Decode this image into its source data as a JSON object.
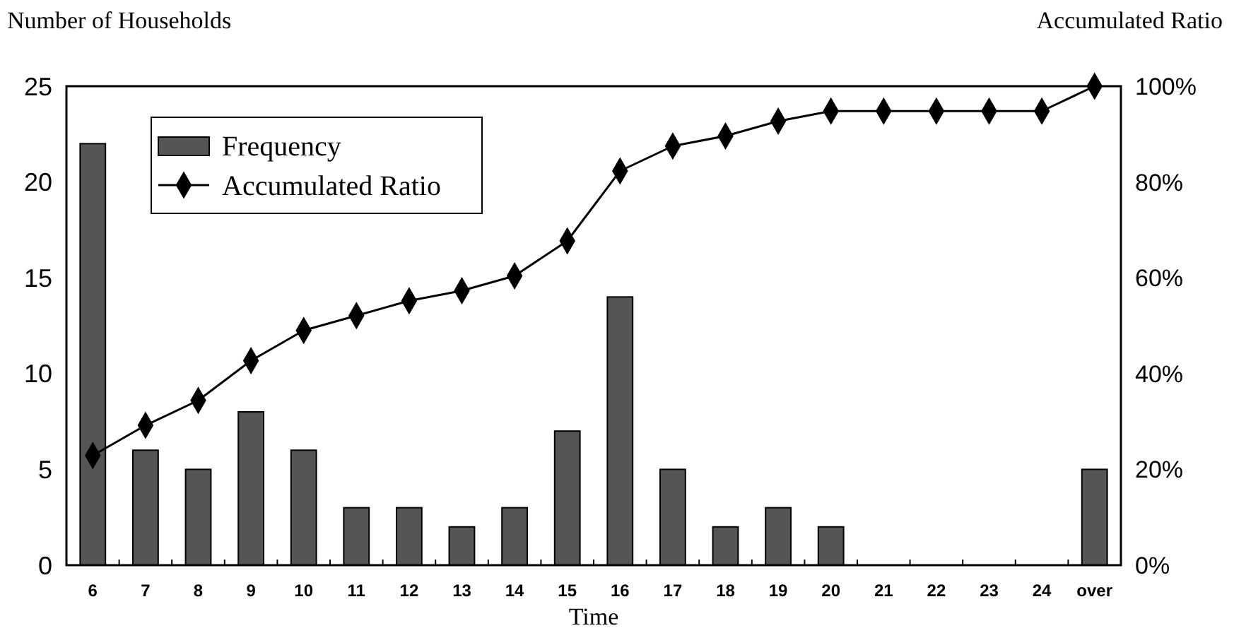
{
  "chart_data": {
    "type": "bar",
    "ylabel": "Number of Households",
    "y2label": "Accumulated Ratio",
    "xlabel": "Time",
    "categories": [
      "6",
      "7",
      "8",
      "9",
      "10",
      "11",
      "12",
      "13",
      "14",
      "15",
      "16",
      "17",
      "18",
      "19",
      "20",
      "21",
      "22",
      "23",
      "24",
      "over"
    ],
    "series": [
      {
        "name": "Frequency",
        "color": "#555555",
        "values": [
          22,
          6,
          5,
          8,
          6,
          3,
          3,
          2,
          3,
          7,
          14,
          5,
          2,
          3,
          2,
          0,
          0,
          0,
          0,
          5
        ]
      },
      {
        "name": "Accumulated Ratio",
        "type": "line",
        "axis": "y2",
        "color": "#000000",
        "marker": "diamond",
        "line_style": "solid",
        "values": [
          22.9,
          29.2,
          34.4,
          42.7,
          49.0,
          52.1,
          55.2,
          57.3,
          60.4,
          67.7,
          82.3,
          87.5,
          89.6,
          92.7,
          94.8,
          94.8,
          94.8,
          94.8,
          94.8,
          100
        ]
      }
    ],
    "ylim": [
      0,
      25
    ],
    "yticks": [
      0,
      5,
      10,
      15,
      20,
      25
    ],
    "y2lim": [
      0,
      100
    ],
    "y2ticks": [
      {
        "value": 0,
        "label": "0%"
      },
      {
        "value": 20,
        "label": "20%"
      },
      {
        "value": 40,
        "label": "40%"
      },
      {
        "value": 60,
        "label": "60%"
      },
      {
        "value": 80,
        "label": "80%"
      },
      {
        "value": 100,
        "label": "100%"
      }
    ],
    "grid": false,
    "legend": "top left"
  }
}
